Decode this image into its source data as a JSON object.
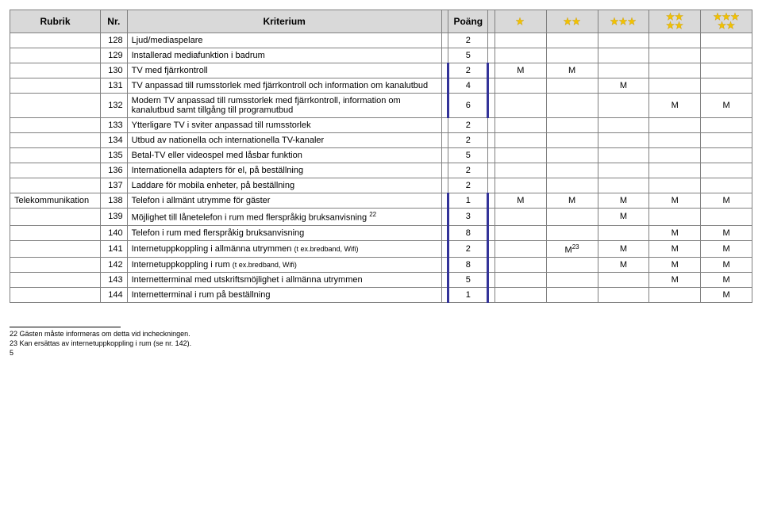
{
  "header": {
    "rubrik": "Rubrik",
    "nr": "Nr.",
    "kriterium": "Kriterium",
    "poang": "Poäng"
  },
  "starColor": "#f2c200",
  "starGroups": [
    "1",
    "2",
    "3",
    "4",
    "5"
  ],
  "sectionLabel": "Telekommunikation",
  "rows": [
    {
      "nr": "128",
      "krit": "Ljud/mediaspelare",
      "poang": "2",
      "thick": false,
      "stars": [
        "",
        "",
        "",
        "",
        ""
      ]
    },
    {
      "nr": "129",
      "krit": "Installerad mediafunktion i badrum",
      "poang": "5",
      "thick": false,
      "stars": [
        "",
        "",
        "",
        "",
        ""
      ]
    },
    {
      "nr": "130",
      "krit": "TV med fjärrkontroll",
      "poang": "2",
      "thick": true,
      "stars": [
        "M",
        "M",
        "",
        "",
        ""
      ]
    },
    {
      "nr": "131",
      "krit": "TV anpassad till rumsstorlek med fjärrkontroll och information om kanalutbud",
      "poang": "4",
      "thick": true,
      "stars": [
        "",
        "",
        "M",
        "",
        ""
      ]
    },
    {
      "nr": "132",
      "krit": "Modern TV anpassad till rumsstorlek med fjärrkontroll, information om kanalutbud samt tillgång till programutbud",
      "poang": "6",
      "thick": true,
      "stars": [
        "",
        "",
        "",
        "M",
        "M"
      ]
    },
    {
      "nr": "133",
      "krit": "Ytterligare TV i sviter anpassad till rumsstorlek",
      "poang": "2",
      "thick": false,
      "stars": [
        "",
        "",
        "",
        "",
        ""
      ]
    },
    {
      "nr": "134",
      "krit": "Utbud av nationella och internationella TV-kanaler",
      "poang": "2",
      "thick": false,
      "stars": [
        "",
        "",
        "",
        "",
        ""
      ]
    },
    {
      "nr": "135",
      "krit": "Betal-TV eller videospel med låsbar funktion",
      "poang": "5",
      "thick": false,
      "stars": [
        "",
        "",
        "",
        "",
        ""
      ]
    },
    {
      "nr": "136",
      "krit": "Internationella adapters för el, på beställning",
      "poang": "2",
      "thick": false,
      "stars": [
        "",
        "",
        "",
        "",
        ""
      ]
    },
    {
      "nr": "137",
      "krit": "Laddare för mobila enheter, på beställning",
      "poang": "2",
      "thick": false,
      "stars": [
        "",
        "",
        "",
        "",
        ""
      ]
    },
    {
      "nr": "138",
      "section": true,
      "krit": "Telefon i allmänt utrymme för gäster",
      "poang": "1",
      "thick": true,
      "stars": [
        "M",
        "M",
        "M",
        "M",
        "M"
      ]
    },
    {
      "nr": "139",
      "krit": "Möjlighet till lånetelefon i rum med flerspråkig bruksanvisning",
      "sup": "22",
      "poang": "3",
      "thick": true,
      "stars": [
        "",
        "",
        "M",
        "",
        ""
      ]
    },
    {
      "nr": "140",
      "krit": "Telefon i rum med flerspråkig bruksanvisning",
      "poang": "8",
      "thick": true,
      "stars": [
        "",
        "",
        "",
        "M",
        "M"
      ]
    },
    {
      "nr": "141",
      "krit": "Internetuppkoppling i allmänna utrymmen (t ex.bredband, Wifi)",
      "small": "(t ex.bredband, Wifi)",
      "poang": "2",
      "thick": true,
      "stars": [
        "",
        "M²³",
        "M",
        "M",
        "M"
      ],
      "starSup": {
        "1": "23"
      }
    },
    {
      "nr": "142",
      "krit": "Internetuppkoppling i rum (t ex.bredband, Wifi)",
      "poang": "8",
      "thick": true,
      "stars": [
        "",
        "",
        "M",
        "M",
        "M"
      ]
    },
    {
      "nr": "143",
      "krit": "Internetterminal med utskriftsmöjlighet i allmänna utrymmen",
      "poang": "5",
      "thick": true,
      "stars": [
        "",
        "",
        "",
        "M",
        "M"
      ]
    },
    {
      "nr": "144",
      "krit": "Internetterminal i rum på beställning",
      "poang": "1",
      "thick": true,
      "stars": [
        "",
        "",
        "",
        "",
        "M"
      ]
    }
  ],
  "footnotes": [
    "22 Gästen måste informeras om detta vid incheckningen.",
    "23 Kan ersättas av internetuppkoppling i rum (se nr. 142).",
    "5"
  ]
}
